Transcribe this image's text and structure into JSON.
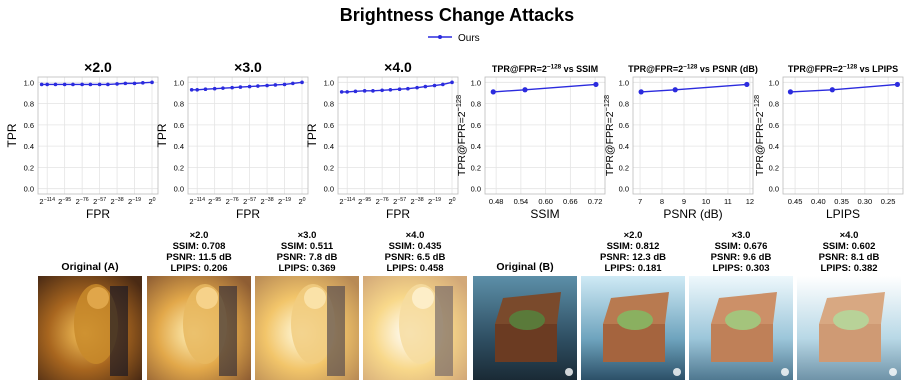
{
  "title": "Brightness Change Attacks",
  "chart_data": [
    {
      "type": "line",
      "title": "×2.0",
      "xlabel": "FPR",
      "ylabel": "TPR",
      "xscale": "log",
      "grid": true,
      "xlim": [
        4.702e-38,
        90.51
      ],
      "ylim": [
        -0.05,
        1.05
      ],
      "xticks": [
        {
          "value": 4.815e-35,
          "label": "2",
          "sup": "−114"
        },
        {
          "value": 2.524e-29,
          "label": "2",
          "sup": "−95"
        },
        {
          "value": 1.323e-23,
          "label": "2",
          "sup": "−76"
        },
        {
          "value": 6.939e-18,
          "label": "2",
          "sup": "−57"
        },
        {
          "value": 3.638e-12,
          "label": "2",
          "sup": "−38"
        },
        {
          "value": 1.907e-06,
          "label": "2",
          "sup": "−19"
        },
        {
          "value": 1,
          "label": "2",
          "sup": "0"
        }
      ],
      "yticks": [
        {
          "value": 0,
          "label": "0.0"
        },
        0.2,
        0.4,
        0.6,
        0.8,
        {
          "value": 1,
          "label": "1.0"
        }
      ],
      "x": [
        7.523e-37,
        4.815e-35,
        2.465e-32,
        2.524e-29,
        1.292e-26,
        1.323e-23,
        6.776e-21,
        6.939e-18,
        3.553e-15,
        3.638e-12,
        1.863e-09,
        1.907e-06,
        0.0009766,
        1
      ],
      "series": [
        {
          "name": "Ours",
          "color": "#2b2bde",
          "values": [
            0.98,
            0.98,
            0.98,
            0.98,
            0.98,
            0.98,
            0.98,
            0.98,
            0.98,
            0.985,
            0.99,
            0.99,
            0.995,
            1.0
          ]
        }
      ]
    },
    {
      "type": "line",
      "title": "×3.0",
      "xlabel": "FPR",
      "ylabel": "TPR",
      "xscale": "log",
      "grid": true,
      "xlim": [
        4.702e-38,
        90.51
      ],
      "ylim": [
        -0.05,
        1.05
      ],
      "xticks": [
        {
          "value": 4.815e-35,
          "label": "2",
          "sup": "−114"
        },
        {
          "value": 2.524e-29,
          "label": "2",
          "sup": "−95"
        },
        {
          "value": 1.323e-23,
          "label": "2",
          "sup": "−76"
        },
        {
          "value": 6.939e-18,
          "label": "2",
          "sup": "−57"
        },
        {
          "value": 3.638e-12,
          "label": "2",
          "sup": "−38"
        },
        {
          "value": 1.907e-06,
          "label": "2",
          "sup": "−19"
        },
        {
          "value": 1,
          "label": "2",
          "sup": "0"
        }
      ],
      "yticks": [
        {
          "value": 0,
          "label": "0.0"
        },
        0.2,
        0.4,
        0.6,
        0.8,
        {
          "value": 1,
          "label": "1.0"
        }
      ],
      "x": [
        7.523e-37,
        4.815e-35,
        2.465e-32,
        2.524e-29,
        1.292e-26,
        1.323e-23,
        6.776e-21,
        6.939e-18,
        3.553e-15,
        3.638e-12,
        1.863e-09,
        1.907e-06,
        0.0009766,
        1
      ],
      "series": [
        {
          "name": "Ours",
          "color": "#2b2bde",
          "values": [
            0.93,
            0.93,
            0.935,
            0.94,
            0.945,
            0.95,
            0.955,
            0.96,
            0.965,
            0.97,
            0.975,
            0.98,
            0.99,
            1.0
          ]
        }
      ]
    },
    {
      "type": "line",
      "title": "×4.0",
      "xlabel": "FPR",
      "ylabel": "TPR",
      "xscale": "log",
      "grid": true,
      "xlim": [
        4.702e-38,
        90.51
      ],
      "ylim": [
        -0.05,
        1.05
      ],
      "xticks": [
        {
          "value": 4.815e-35,
          "label": "2",
          "sup": "−114"
        },
        {
          "value": 2.524e-29,
          "label": "2",
          "sup": "−95"
        },
        {
          "value": 1.323e-23,
          "label": "2",
          "sup": "−76"
        },
        {
          "value": 6.939e-18,
          "label": "2",
          "sup": "−57"
        },
        {
          "value": 3.638e-12,
          "label": "2",
          "sup": "−38"
        },
        {
          "value": 1.907e-06,
          "label": "2",
          "sup": "−19"
        },
        {
          "value": 1,
          "label": "2",
          "sup": "0"
        }
      ],
      "yticks": [
        {
          "value": 0,
          "label": "0.0"
        },
        0.2,
        0.4,
        0.6,
        0.8,
        {
          "value": 1,
          "label": "1.0"
        }
      ],
      "x": [
        7.523e-37,
        4.815e-35,
        2.465e-32,
        2.524e-29,
        1.292e-26,
        1.323e-23,
        6.776e-21,
        6.939e-18,
        3.553e-15,
        3.638e-12,
        1.863e-09,
        1.907e-06,
        0.0009766,
        1
      ],
      "series": [
        {
          "name": "Ours",
          "color": "#2b2bde",
          "values": [
            0.91,
            0.91,
            0.915,
            0.92,
            0.92,
            0.925,
            0.93,
            0.935,
            0.94,
            0.95,
            0.96,
            0.97,
            0.98,
            1.0
          ]
        }
      ]
    },
    {
      "type": "line",
      "title": {
        "base": "TPR@FPR=2",
        "sup": "−128",
        "tail": " vs SSIM"
      },
      "xlabel": "SSIM",
      "ylabel": {
        "base": "TPR@FPR=2",
        "sup": "−128"
      },
      "grid": true,
      "xlim": [
        0.453,
        0.744
      ],
      "ylim": [
        -0.05,
        1.05
      ],
      "xticks": [
        0.48,
        0.54,
        {
          "value": 0.6,
          "label": "0.60"
        },
        0.66,
        0.72
      ],
      "yticks": [
        {
          "value": 0,
          "label": "0.0"
        },
        0.2,
        0.4,
        0.6,
        0.8,
        {
          "value": 1,
          "label": "1.0"
        }
      ],
      "x": [
        0.473,
        0.55,
        0.722
      ],
      "series": [
        {
          "name": "Ours",
          "color": "#2b2bde",
          "values": [
            0.91,
            0.93,
            0.98
          ]
        }
      ]
    },
    {
      "type": "line",
      "title": {
        "base": "TPR@FPR=2",
        "sup": "−128",
        "tail": " vs PSNR (dB)"
      },
      "xlabel": "PSNR (dB)",
      "ylabel": {
        "base": "TPR@FPR=2",
        "sup": "−128"
      },
      "grid": true,
      "xlim": [
        6.68,
        12.14
      ],
      "ylim": [
        -0.05,
        1.05
      ],
      "xticks": [
        7,
        8,
        9,
        10,
        11,
        12
      ],
      "yticks": [
        {
          "value": 0,
          "label": "0.0"
        },
        0.2,
        0.4,
        0.6,
        0.8,
        {
          "value": 1,
          "label": "1.0"
        }
      ],
      "x": [
        7.05,
        8.6,
        11.86
      ],
      "series": [
        {
          "name": "Ours",
          "color": "#2b2bde",
          "values": [
            0.91,
            0.93,
            0.98
          ]
        }
      ]
    },
    {
      "type": "line",
      "title": {
        "base": "TPR@FPR=2",
        "sup": "−128",
        "tail": " vs LPIPS"
      },
      "xlabel": "LPIPS",
      "ylabel": {
        "base": "TPR@FPR=2",
        "sup": "−128"
      },
      "grid": true,
      "xlim": [
        0.476,
        0.218
      ],
      "ylim": [
        -0.05,
        1.05
      ],
      "xticks": [
        0.45,
        {
          "value": 0.4,
          "label": "0.40"
        },
        0.35,
        {
          "value": 0.3,
          "label": "0.30"
        },
        0.25
      ],
      "yticks": [
        {
          "value": 0,
          "label": "0.0"
        },
        0.2,
        0.4,
        0.6,
        0.8,
        {
          "value": 1,
          "label": "1.0"
        }
      ],
      "x": [
        0.46,
        0.37,
        0.23
      ],
      "series": [
        {
          "name": "Ours",
          "color": "#2b2bde",
          "values": [
            0.91,
            0.93,
            0.98
          ]
        }
      ]
    }
  ],
  "images": [
    {
      "label": "Original (A)"
    },
    {
      "label": "×2.0",
      "metrics": [
        "SSIM: 0.708",
        "PSNR: 11.5 dB",
        "LPIPS: 0.206"
      ]
    },
    {
      "label": "×3.0",
      "metrics": [
        "SSIM: 0.511",
        "PSNR: 7.8 dB",
        "LPIPS: 0.369"
      ]
    },
    {
      "label": "×4.0",
      "metrics": [
        "SSIM: 0.435",
        "PSNR: 6.5 dB",
        "LPIPS: 0.458"
      ]
    },
    {
      "label": "Original (B)"
    },
    {
      "label": "×2.0",
      "metrics": [
        "SSIM: 0.812",
        "PSNR: 12.3 dB",
        "LPIPS: 0.181"
      ]
    },
    {
      "label": "×3.0",
      "metrics": [
        "SSIM: 0.676",
        "PSNR: 9.6 dB",
        "LPIPS: 0.303"
      ]
    },
    {
      "label": "×4.0",
      "metrics": [
        "SSIM: 0.602",
        "PSNR: 8.1 dB",
        "LPIPS: 0.382"
      ]
    }
  ]
}
